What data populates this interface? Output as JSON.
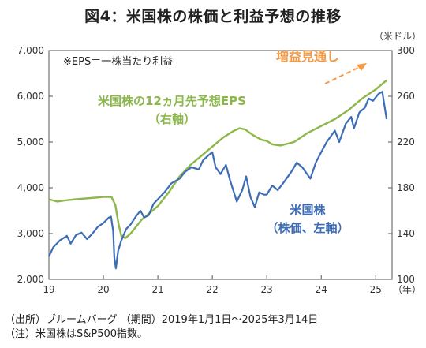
{
  "title": "図4：米国株の株価と利益予想の推移",
  "chart_data": {
    "type": "line",
    "y_unit_right": "（米ドル）",
    "x_unit": "（年）",
    "x_ticks": [
      "19",
      "20",
      "21",
      "22",
      "23",
      "24",
      "25"
    ],
    "x_range": [
      2019.0,
      2025.3
    ],
    "y_left": {
      "range": [
        2000,
        7000
      ],
      "ticks": [
        "2,000",
        "3,000",
        "4,000",
        "5,000",
        "6,000",
        "7,000"
      ]
    },
    "y_right": {
      "range": [
        100,
        300
      ],
      "ticks": [
        "100",
        "140",
        "180",
        "220",
        "260",
        "300"
      ]
    },
    "grid": false,
    "annotations": {
      "eps_def": "※EPS＝一株当たり利益",
      "eps_label_1": "米国株の12ヵ月先予想EPS",
      "eps_label_2": "（右軸）",
      "stock_label_1": "米国株",
      "stock_label_2": "（株価、左軸）",
      "trend_label": "増益見通し"
    },
    "colors": {
      "stock": "#3d6db6",
      "eps": "#8cb84a",
      "trend": "#f39a4a"
    },
    "series": [
      {
        "name": "米国株の12ヵ月先予想EPS",
        "axis": "right",
        "points": [
          [
            2019.0,
            170
          ],
          [
            2019.15,
            168
          ],
          [
            2019.3,
            169
          ],
          [
            2019.5,
            170
          ],
          [
            2019.75,
            171
          ],
          [
            2020.0,
            172
          ],
          [
            2020.15,
            172
          ],
          [
            2020.22,
            165
          ],
          [
            2020.28,
            148
          ],
          [
            2020.33,
            138
          ],
          [
            2020.4,
            136
          ],
          [
            2020.5,
            140
          ],
          [
            2020.7,
            152
          ],
          [
            2020.9,
            160
          ],
          [
            2021.0,
            164
          ],
          [
            2021.2,
            176
          ],
          [
            2021.4,
            190
          ],
          [
            2021.6,
            200
          ],
          [
            2021.8,
            208
          ],
          [
            2022.0,
            216
          ],
          [
            2022.2,
            224
          ],
          [
            2022.4,
            230
          ],
          [
            2022.5,
            232
          ],
          [
            2022.6,
            231
          ],
          [
            2022.75,
            226
          ],
          [
            2022.9,
            222
          ],
          [
            2023.0,
            221
          ],
          [
            2023.1,
            218
          ],
          [
            2023.25,
            217
          ],
          [
            2023.5,
            220
          ],
          [
            2023.75,
            228
          ],
          [
            2024.0,
            234
          ],
          [
            2024.25,
            240
          ],
          [
            2024.5,
            248
          ],
          [
            2024.75,
            258
          ],
          [
            2025.0,
            266
          ],
          [
            2025.2,
            274
          ]
        ]
      },
      {
        "name": "米国株",
        "axis": "left",
        "points": [
          [
            2019.0,
            2500
          ],
          [
            2019.08,
            2700
          ],
          [
            2019.2,
            2850
          ],
          [
            2019.33,
            2950
          ],
          [
            2019.4,
            2780
          ],
          [
            2019.5,
            2970
          ],
          [
            2019.6,
            3020
          ],
          [
            2019.7,
            2880
          ],
          [
            2019.8,
            3000
          ],
          [
            2019.9,
            3150
          ],
          [
            2020.0,
            3230
          ],
          [
            2020.1,
            3350
          ],
          [
            2020.14,
            3370
          ],
          [
            2020.18,
            3050
          ],
          [
            2020.2,
            2480
          ],
          [
            2020.23,
            2240
          ],
          [
            2020.27,
            2620
          ],
          [
            2020.33,
            2850
          ],
          [
            2020.42,
            3100
          ],
          [
            2020.5,
            3200
          ],
          [
            2020.6,
            3380
          ],
          [
            2020.68,
            3500
          ],
          [
            2020.75,
            3350
          ],
          [
            2020.83,
            3400
          ],
          [
            2020.92,
            3650
          ],
          [
            2021.0,
            3750
          ],
          [
            2021.12,
            3900
          ],
          [
            2021.25,
            4100
          ],
          [
            2021.4,
            4200
          ],
          [
            2021.5,
            4350
          ],
          [
            2021.62,
            4450
          ],
          [
            2021.75,
            4400
          ],
          [
            2021.83,
            4600
          ],
          [
            2021.92,
            4700
          ],
          [
            2022.0,
            4780
          ],
          [
            2022.06,
            4450
          ],
          [
            2022.15,
            4300
          ],
          [
            2022.25,
            4500
          ],
          [
            2022.33,
            4150
          ],
          [
            2022.45,
            3700
          ],
          [
            2022.55,
            3950
          ],
          [
            2022.62,
            4250
          ],
          [
            2022.7,
            3800
          ],
          [
            2022.78,
            3580
          ],
          [
            2022.86,
            3900
          ],
          [
            2022.95,
            3850
          ],
          [
            2023.0,
            3850
          ],
          [
            2023.1,
            4050
          ],
          [
            2023.2,
            3950
          ],
          [
            2023.3,
            4100
          ],
          [
            2023.45,
            4350
          ],
          [
            2023.55,
            4550
          ],
          [
            2023.65,
            4450
          ],
          [
            2023.8,
            4200
          ],
          [
            2023.9,
            4550
          ],
          [
            2024.0,
            4780
          ],
          [
            2024.1,
            5000
          ],
          [
            2024.25,
            5250
          ],
          [
            2024.33,
            5000
          ],
          [
            2024.45,
            5400
          ],
          [
            2024.55,
            5550
          ],
          [
            2024.6,
            5300
          ],
          [
            2024.7,
            5650
          ],
          [
            2024.8,
            5750
          ],
          [
            2024.87,
            5950
          ],
          [
            2024.95,
            5900
          ],
          [
            2025.05,
            6050
          ],
          [
            2025.12,
            6100
          ],
          [
            2025.16,
            5800
          ],
          [
            2025.2,
            5500
          ]
        ]
      }
    ]
  },
  "footer": {
    "source": "（出所）ブルームバーグ （期間）2019年1月1日～2025年3月14日",
    "note": "（注）米国株はS&P500指数。"
  }
}
